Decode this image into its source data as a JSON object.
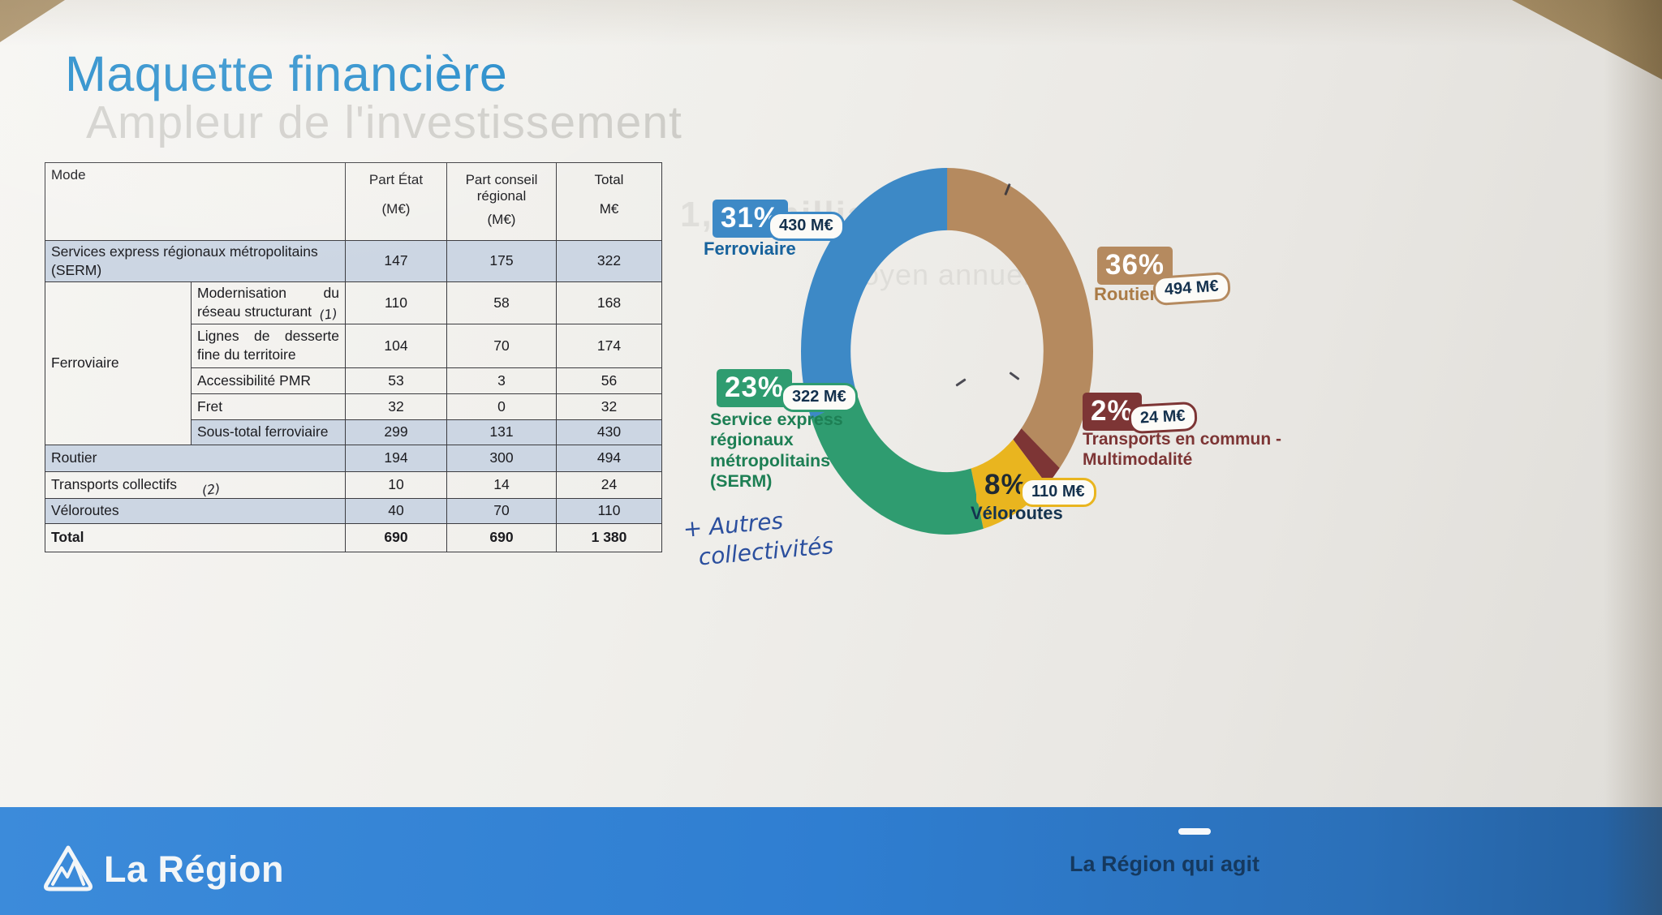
{
  "page": {
    "title": "Maquette financière",
    "ghost_title": "Ampleur de l'investissement",
    "ghost_fragment_1": "1,38 milliard €",
    "ghost_fragment_2": "moyen annuel",
    "handwritten_note_line1": "+ Autres",
    "handwritten_note_line2": "collectivités"
  },
  "table": {
    "header": {
      "mode": "Mode",
      "part_etat": "Part État",
      "part_etat_unit": "(M€)",
      "part_conseil_line1": "Part conseil",
      "part_conseil_line2": "régional",
      "part_conseil_unit": "(M€)",
      "total": "Total",
      "total_unit": "M€"
    },
    "serm_row": {
      "label": "Services express régionaux métropolitains (SERM)",
      "etat": "147",
      "conseil": "175",
      "total": "322"
    },
    "ferroviaire_group_label": "Ferroviaire",
    "ferroviaire_rows": [
      {
        "label": "Modernisation du réseau structurant",
        "hand_note": "(1)",
        "etat": "110",
        "conseil": "58",
        "total": "168"
      },
      {
        "label": "Lignes de desserte fine du territoire",
        "hand_note": "",
        "etat": "104",
        "conseil": "70",
        "total": "174"
      },
      {
        "label": "Accessibilité PMR",
        "hand_note": "",
        "etat": "53",
        "conseil": "3",
        "total": "56"
      },
      {
        "label": "Fret",
        "hand_note": "",
        "etat": "32",
        "conseil": "0",
        "total": "32"
      },
      {
        "label": "Sous-total ferroviaire",
        "hand_note": "",
        "etat": "299",
        "conseil": "131",
        "total": "430"
      }
    ],
    "routier_row": {
      "label": "Routier",
      "etat": "194",
      "conseil": "300",
      "total": "494"
    },
    "transports_row": {
      "label": "Transports collectifs",
      "hand_note": "(2)",
      "etat": "10",
      "conseil": "14",
      "total": "24"
    },
    "veloroutes_row": {
      "label": "Véloroutes",
      "etat": "40",
      "conseil": "70",
      "total": "110"
    },
    "total_row": {
      "label": "Total",
      "etat": "690",
      "conseil": "690",
      "total": "1 380"
    }
  },
  "chart_data": {
    "type": "pie",
    "subtype": "donut",
    "units": "M€",
    "total_amount": "1 380",
    "direction": "clockwise",
    "start_angle_deg_from_top": 0,
    "segments": [
      {
        "label": "Routier",
        "pct": 36,
        "value": 494,
        "pct_label": "36%",
        "amount_label": "494 M€",
        "color": "#b58a5f",
        "pct_text_color": "#ffffff",
        "label_color": "#aa7b46",
        "label_lines": "Routier"
      },
      {
        "label": "Transports en commun - Multimodalité",
        "pct": 2,
        "value": 24,
        "pct_label": "2%",
        "amount_label": "24 M€",
        "color": "#7d3535",
        "pct_text_color": "#ffffff",
        "label_color": "#7d3535",
        "label_lines": "Transports en commun -\nMultimodalité"
      },
      {
        "label": "Véloroutes",
        "pct": 8,
        "value": 110,
        "pct_label": "8%",
        "amount_label": "110 M€",
        "color": "#e9b51f",
        "pct_text_color": "#1f2a33",
        "label_color": "#14334f",
        "label_lines": "Véloroutes"
      },
      {
        "label": "Service express régionaux métropolitains (SERM)",
        "pct": 23,
        "value": 322,
        "pct_label": "23%",
        "amount_label": "322 M€",
        "color": "#2f9c70",
        "pct_text_color": "#ffffff",
        "label_color": "#1d7f54",
        "label_lines": "Service express\nrégionaux\nmétropolitains\n(SERM)"
      },
      {
        "label": "Ferroviaire",
        "pct": 31,
        "value": 430,
        "pct_label": "31%",
        "amount_label": "430 M€",
        "color": "#3d89c6",
        "pct_text_color": "#ffffff",
        "label_color": "#17629c",
        "label_lines": "Ferroviaire"
      }
    ]
  },
  "footer": {
    "brand": "La Région",
    "tagline": "La Région qui agit",
    "band_color": "#2e7fd0"
  }
}
